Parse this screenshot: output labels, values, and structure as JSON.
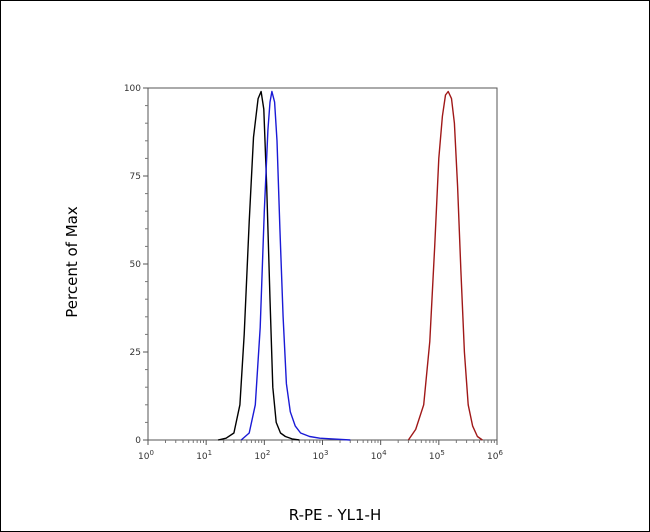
{
  "chart_data": {
    "type": "line",
    "title": "",
    "xlabel": "R-PE - YL1-H",
    "ylabel": "Percent of Max",
    "x_scale": "log",
    "xlim": [
      1,
      1000000
    ],
    "ylim": [
      0,
      100
    ],
    "x_ticks": [
      {
        "value": 1,
        "base": "10",
        "exp": "0"
      },
      {
        "value": 10,
        "base": "10",
        "exp": "1"
      },
      {
        "value": 100,
        "base": "10",
        "exp": "2"
      },
      {
        "value": 1000,
        "base": "10",
        "exp": "3"
      },
      {
        "value": 10000,
        "base": "10",
        "exp": "4"
      },
      {
        "value": 100000,
        "base": "10",
        "exp": "5"
      },
      {
        "value": 1000000,
        "base": "10",
        "exp": "6"
      }
    ],
    "y_ticks": [
      {
        "value": 0,
        "label": "0"
      },
      {
        "value": 25,
        "label": "25"
      },
      {
        "value": 50,
        "label": "50"
      },
      {
        "value": 75,
        "label": "75"
      },
      {
        "value": 100,
        "label": "100"
      }
    ],
    "grid": false,
    "legend": "none",
    "series": [
      {
        "color": "#000000",
        "points": [
          [
            16,
            0
          ],
          [
            22,
            0.5
          ],
          [
            30,
            2
          ],
          [
            38,
            10
          ],
          [
            45,
            30
          ],
          [
            55,
            62
          ],
          [
            65,
            86
          ],
          [
            78,
            97
          ],
          [
            88,
            99
          ],
          [
            98,
            94
          ],
          [
            110,
            72
          ],
          [
            125,
            40
          ],
          [
            140,
            15
          ],
          [
            160,
            5
          ],
          [
            190,
            2
          ],
          [
            230,
            1
          ],
          [
            300,
            0.3
          ],
          [
            400,
            0
          ]
        ]
      },
      {
        "color": "#1a1ad6",
        "points": [
          [
            40,
            0
          ],
          [
            55,
            2
          ],
          [
            70,
            10
          ],
          [
            85,
            32
          ],
          [
            100,
            65
          ],
          [
            115,
            88
          ],
          [
            125,
            96
          ],
          [
            135,
            99
          ],
          [
            150,
            96
          ],
          [
            165,
            85
          ],
          [
            185,
            60
          ],
          [
            210,
            35
          ],
          [
            240,
            16
          ],
          [
            280,
            8
          ],
          [
            340,
            4
          ],
          [
            420,
            2
          ],
          [
            600,
            1
          ],
          [
            900,
            0.5
          ],
          [
            1500,
            0.3
          ],
          [
            3000,
            0
          ]
        ]
      },
      {
        "color": "#a01818",
        "points": [
          [
            30000,
            0
          ],
          [
            40000,
            3
          ],
          [
            55000,
            10
          ],
          [
            70000,
            28
          ],
          [
            85000,
            55
          ],
          [
            100000,
            80
          ],
          [
            115000,
            92
          ],
          [
            130000,
            98
          ],
          [
            145000,
            99
          ],
          [
            165000,
            97
          ],
          [
            185000,
            90
          ],
          [
            210000,
            72
          ],
          [
            240000,
            48
          ],
          [
            275000,
            25
          ],
          [
            320000,
            10
          ],
          [
            380000,
            4
          ],
          [
            460000,
            1
          ],
          [
            560000,
            0
          ]
        ]
      }
    ]
  }
}
